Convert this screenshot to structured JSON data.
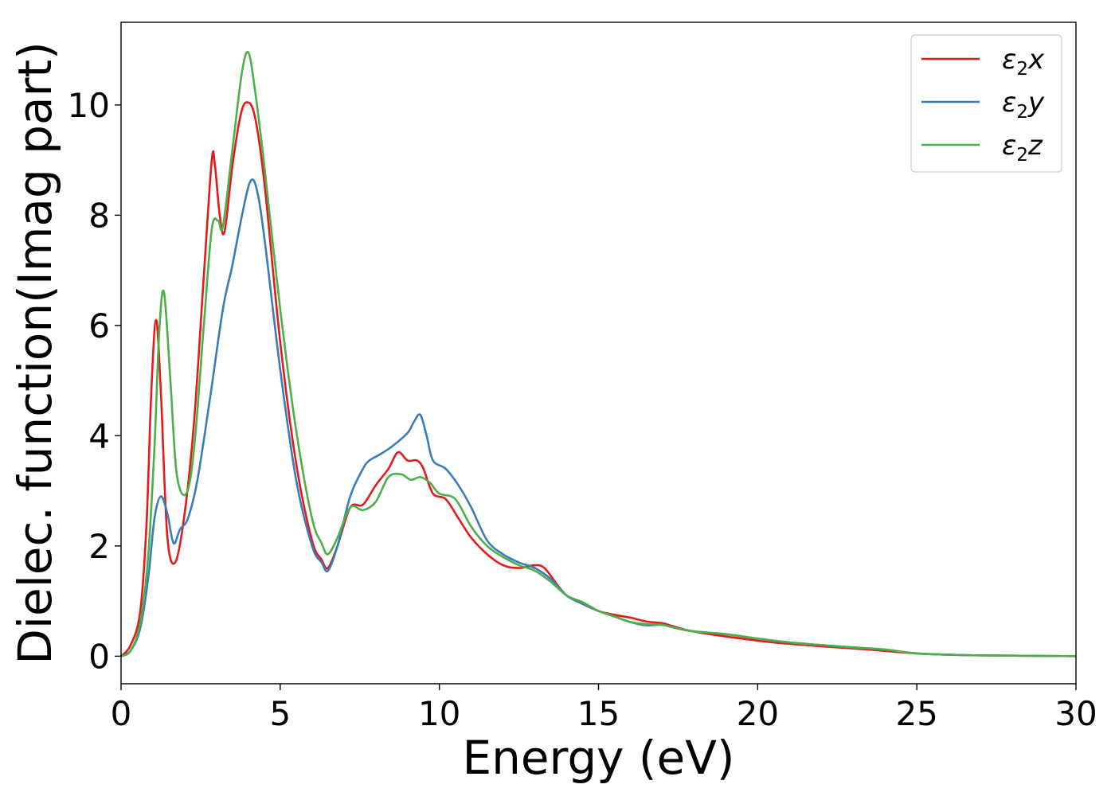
{
  "chart_data": {
    "type": "line",
    "title": "",
    "xlabel": "Energy (eV)",
    "ylabel": "Dielec. function(Imag part)",
    "xlim": [
      0,
      30
    ],
    "ylim": [
      -0.5,
      11.5
    ],
    "xticks": [
      0,
      5,
      10,
      15,
      20,
      25,
      30
    ],
    "yticks": [
      0,
      2,
      4,
      6,
      8,
      10
    ],
    "grid": false,
    "legend": "top-right",
    "series": [
      {
        "name": "ε₂x",
        "legend_main": "ε",
        "legend_sub": "2",
        "legend_var": "x",
        "color": "#e41a1c",
        "x": [
          0,
          0.3,
          0.6,
          0.8,
          0.95,
          1.1,
          1.25,
          1.45,
          1.7,
          2.0,
          2.3,
          2.6,
          2.85,
          2.95,
          3.1,
          3.25,
          3.5,
          3.75,
          3.95,
          4.2,
          4.5,
          5.0,
          5.5,
          6.0,
          6.3,
          6.5,
          6.8,
          7.2,
          7.6,
          8.0,
          8.4,
          8.7,
          9.0,
          9.3,
          9.5,
          9.8,
          10.2,
          10.6,
          11.0,
          11.5,
          12.0,
          12.5,
          13.0,
          13.3,
          13.7,
          14.0,
          14.5,
          15.0,
          15.5,
          16.0,
          16.5,
          17.0,
          17.3,
          17.8,
          18.5,
          19.5,
          20.5,
          22.0,
          23.5,
          25.0,
          26.5,
          28.0,
          30.0
        ],
        "y": [
          0,
          0.2,
          0.8,
          2.4,
          4.8,
          6.1,
          4.8,
          2.2,
          1.7,
          2.6,
          4.3,
          6.9,
          9.0,
          8.9,
          8.0,
          7.7,
          8.9,
          9.8,
          10.05,
          9.8,
          8.6,
          5.7,
          3.5,
          2.1,
          1.75,
          1.6,
          2.0,
          2.7,
          2.75,
          3.1,
          3.4,
          3.7,
          3.55,
          3.55,
          3.4,
          2.95,
          2.85,
          2.5,
          2.15,
          1.85,
          1.65,
          1.6,
          1.65,
          1.6,
          1.3,
          1.1,
          0.95,
          0.82,
          0.75,
          0.7,
          0.63,
          0.6,
          0.55,
          0.47,
          0.4,
          0.32,
          0.25,
          0.18,
          0.12,
          0.05,
          0.02,
          0.01,
          0
        ]
      },
      {
        "name": "ε₂y",
        "legend_main": "ε",
        "legend_sub": "2",
        "legend_var": "y",
        "color": "#377eb8",
        "x": [
          0,
          0.3,
          0.6,
          0.85,
          1.05,
          1.25,
          1.45,
          1.65,
          1.85,
          2.1,
          2.4,
          2.8,
          3.2,
          3.5,
          3.8,
          4.05,
          4.25,
          4.5,
          5.0,
          5.5,
          6.0,
          6.3,
          6.5,
          6.8,
          7.2,
          7.6,
          7.8,
          8.1,
          8.5,
          9.0,
          9.2,
          9.4,
          9.6,
          9.8,
          10.2,
          10.6,
          11.0,
          11.5,
          12.0,
          12.5,
          13.0,
          13.5,
          14.0,
          14.5,
          15.0,
          15.5,
          16.0,
          16.5,
          17.0,
          17.5,
          18.0,
          19.0,
          20.0,
          21.0,
          22.5,
          24.0,
          25.0,
          26.5,
          28.0,
          30.0
        ],
        "y": [
          0,
          0.1,
          0.5,
          1.4,
          2.5,
          2.9,
          2.6,
          2.05,
          2.3,
          2.5,
          3.2,
          4.7,
          6.3,
          7.1,
          8.0,
          8.6,
          8.5,
          7.6,
          5.2,
          3.2,
          2.0,
          1.7,
          1.55,
          2.0,
          2.9,
          3.4,
          3.55,
          3.65,
          3.8,
          4.05,
          4.25,
          4.38,
          4.0,
          3.55,
          3.4,
          3.1,
          2.7,
          2.1,
          1.85,
          1.7,
          1.6,
          1.4,
          1.1,
          0.95,
          0.82,
          0.72,
          0.62,
          0.56,
          0.57,
          0.5,
          0.45,
          0.4,
          0.32,
          0.25,
          0.18,
          0.12,
          0.05,
          0.02,
          0.01,
          0
        ]
      },
      {
        "name": "ε₂z",
        "legend_main": "ε",
        "legend_sub": "2",
        "legend_var": "z",
        "color": "#4daf4a",
        "x": [
          0,
          0.3,
          0.6,
          0.85,
          1.05,
          1.2,
          1.35,
          1.55,
          1.75,
          2.05,
          2.3,
          2.6,
          2.85,
          3.05,
          3.2,
          3.5,
          3.8,
          4.0,
          4.2,
          4.5,
          5.0,
          5.5,
          6.0,
          6.3,
          6.5,
          6.8,
          7.2,
          7.6,
          8.0,
          8.4,
          8.8,
          9.1,
          9.4,
          9.7,
          10.0,
          10.5,
          11.0,
          11.5,
          12.0,
          12.5,
          13.0,
          13.5,
          14.0,
          14.5,
          15.0,
          15.5,
          16.0,
          16.5,
          17.0,
          17.5,
          18.0,
          19.0,
          20.0,
          21.0,
          22.5,
          24.0,
          25.0,
          26.5,
          28.0,
          30.0
        ],
        "y": [
          0,
          0.1,
          0.6,
          1.8,
          3.8,
          5.9,
          6.6,
          5.0,
          3.3,
          2.95,
          3.8,
          6.0,
          7.75,
          7.9,
          7.8,
          9.2,
          10.6,
          10.95,
          10.3,
          8.9,
          6.3,
          4.1,
          2.5,
          2.05,
          1.85,
          2.15,
          2.7,
          2.65,
          2.8,
          3.25,
          3.3,
          3.2,
          3.25,
          3.15,
          2.95,
          2.85,
          2.35,
          2.0,
          1.8,
          1.65,
          1.55,
          1.35,
          1.1,
          0.98,
          0.82,
          0.72,
          0.62,
          0.58,
          0.57,
          0.5,
          0.45,
          0.4,
          0.32,
          0.25,
          0.18,
          0.12,
          0.05,
          0.02,
          0.01,
          0
        ]
      }
    ]
  }
}
